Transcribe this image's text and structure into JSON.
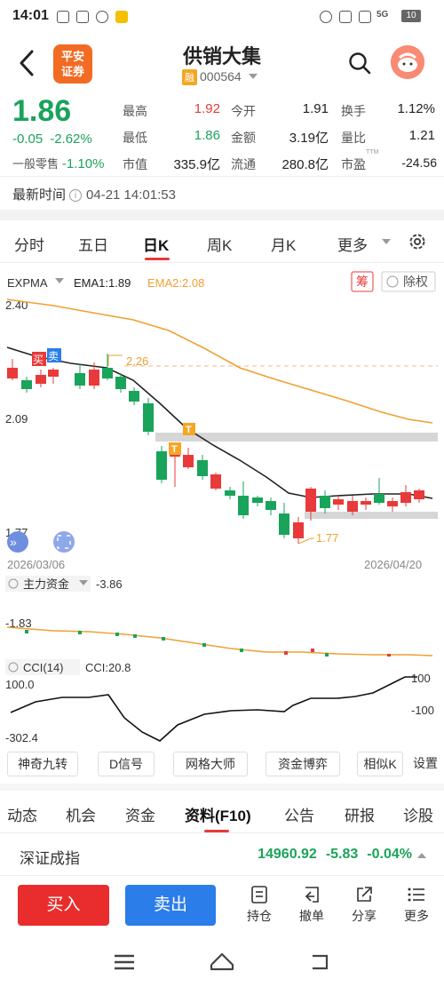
{
  "status_bar": {
    "time": "14:01",
    "network": "5G",
    "battery": "10"
  },
  "header": {
    "logo_text_1": "平安",
    "logo_text_2": "证券",
    "stock_name": "供销大集",
    "badge": "融",
    "stock_code": "000564"
  },
  "quote": {
    "price": "1.86",
    "change": "-0.05",
    "change_pct": "-2.62%",
    "odd_lot_label": "一般零售",
    "odd_lot_pct": "-1.10%",
    "fields": [
      {
        "label": "最高",
        "value": "1.92",
        "color": "red"
      },
      {
        "label": "今开",
        "value": "1.91",
        "color": "dark"
      },
      {
        "label": "换手",
        "value": "1.12%",
        "color": "dark"
      },
      {
        "label": "最低",
        "value": "1.86",
        "color": "green"
      },
      {
        "label": "金额",
        "value": "3.19亿",
        "color": "dark"
      },
      {
        "label": "量比",
        "value": "1.21",
        "color": "dark"
      },
      {
        "label": "市值",
        "value": "335.9亿",
        "color": "dark"
      },
      {
        "label": "流通",
        "value": "280.8亿",
        "color": "dark"
      },
      {
        "label": "市盈",
        "value": "-24.56",
        "color": "dark"
      }
    ],
    "pe_superscript": "TTM"
  },
  "update": {
    "label": "最新时间",
    "info_glyph": "i",
    "value": "04-21 14:01:53"
  },
  "period_tabs": [
    "分时",
    "五日",
    "日K",
    "周K",
    "月K",
    "更多"
  ],
  "active_period": "日K",
  "chart": {
    "indicator_name": "EXPMA",
    "ema1_label": "EMA1:1.89",
    "ema2_label": "EMA2:2.08",
    "chou_label": "筹",
    "fuquan_label": "除权",
    "y_high": "2.40",
    "y_mid": "2.09",
    "y_low": "1.77",
    "high_marker": "2.26",
    "low_marker": "1.77",
    "buy_tag": "买",
    "sell_tag": "卖",
    "t_tag": "T",
    "date_start": "2026/03/06",
    "date_end": "2026/04/20",
    "colors": {
      "up": "#e83a3a",
      "down": "#1aa35b",
      "ema1": "#222222",
      "ema2": "#f0a030"
    }
  },
  "chart_data": {
    "type": "candlestick",
    "x_range": [
      "2026/03/06",
      "2026/04/20"
    ],
    "ylim": [
      1.77,
      2.4
    ],
    "reference_lines": [
      2.26,
      1.77
    ],
    "ema1_last": 1.89,
    "ema2_last": 2.08
  },
  "fund_panel": {
    "label": "主力资金",
    "value": "-3.86",
    "axis_value": "-1.83"
  },
  "cci_panel": {
    "label": "CCI(14)",
    "value": "CCI:20.8",
    "y_top": "100.0",
    "y_bottom": "-302.4",
    "ref_high": "100",
    "ref_low": "-100"
  },
  "func_buttons": [
    "神奇九转",
    "D信号",
    "网格大师",
    "资金博弈",
    "相似K",
    "设置"
  ],
  "info_tabs": [
    "动态",
    "机会",
    "资金",
    "资料(F10)",
    "公告",
    "研报",
    "诊股"
  ],
  "active_info_tab": "资料(F10)",
  "index": {
    "name": "深证成指",
    "value": "14960.92",
    "change": "-5.83",
    "change_pct": "-0.04%"
  },
  "actions": {
    "buy": "买入",
    "sell": "卖出",
    "items": [
      "持仓",
      "撤单",
      "分享",
      "更多"
    ]
  }
}
